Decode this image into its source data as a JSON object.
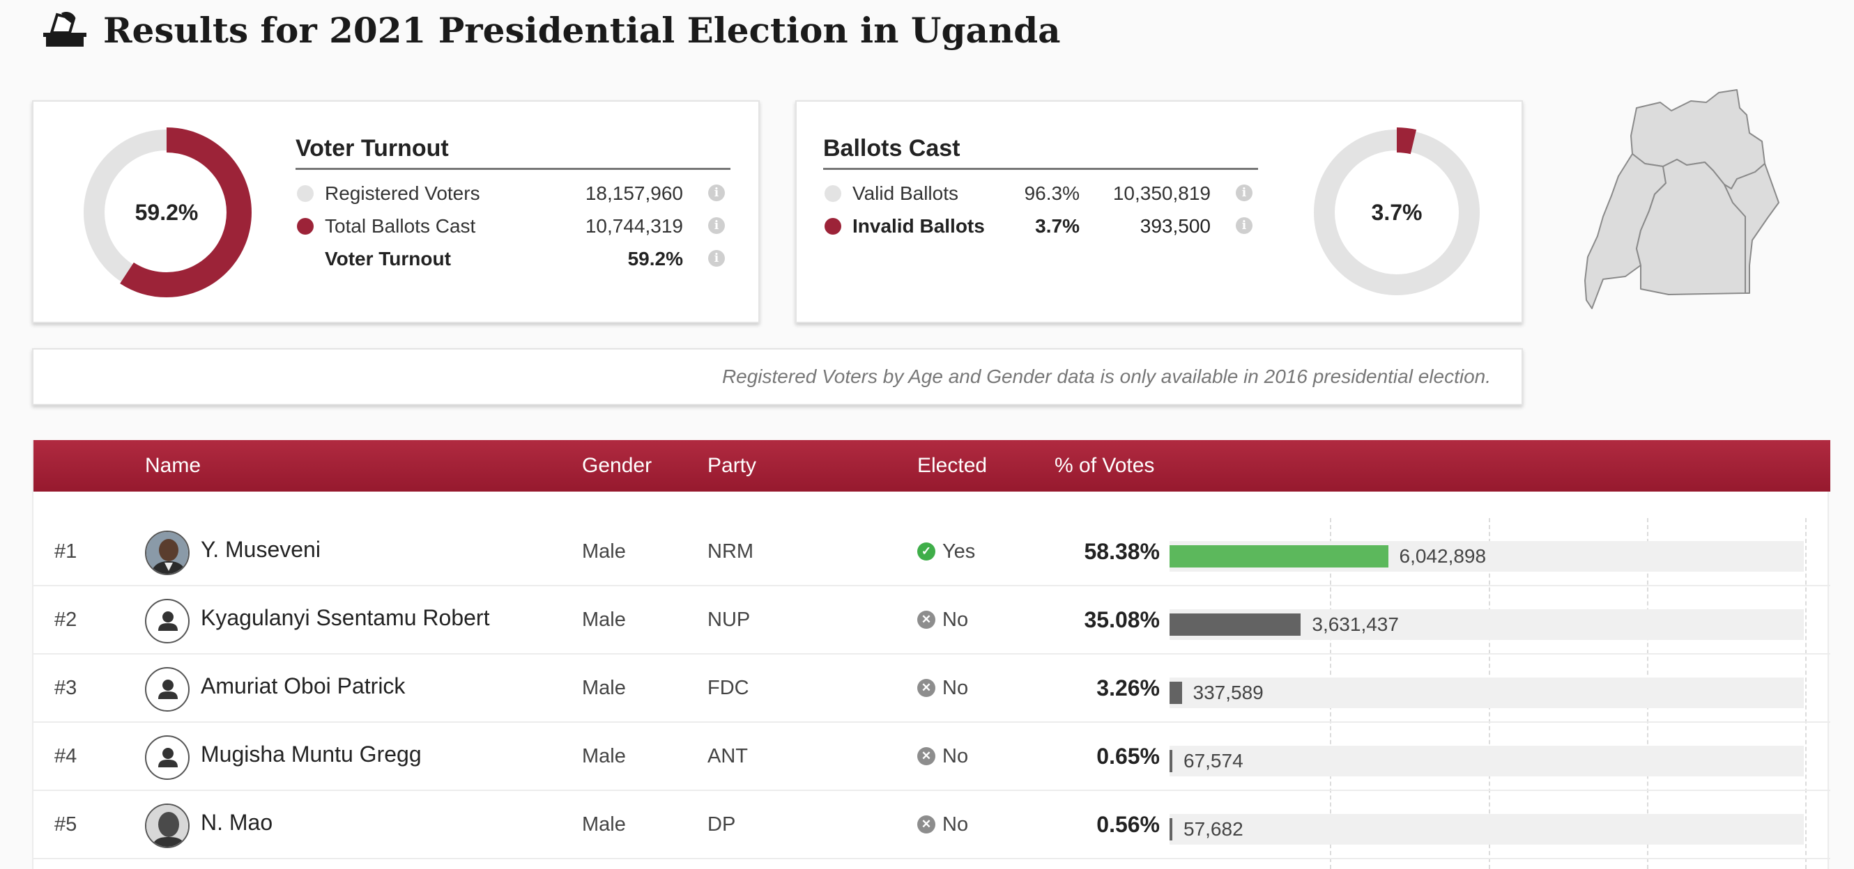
{
  "page": {
    "title": "Results for 2021 Presidential Election in Uganda",
    "title_icon": "ballot-box-icon"
  },
  "turnout": {
    "title": "Voter Turnout",
    "center_label": "59.2%",
    "fraction": 0.592,
    "rows": [
      {
        "label": "Registered Voters",
        "value": "18,157,960",
        "dot": "grey"
      },
      {
        "label": "Total Ballots Cast",
        "value": "10,744,319",
        "dot": "red"
      },
      {
        "label": "Voter Turnout",
        "value": "59.2%",
        "dot": "none"
      }
    ]
  },
  "ballots": {
    "title": "Ballots Cast",
    "center_label": "3.7%",
    "fraction": 0.037,
    "rows": [
      {
        "label": "Valid Ballots",
        "pct": "96.3%",
        "value": "10,350,819",
        "dot": "grey"
      },
      {
        "label": "Invalid Ballots",
        "pct": "3.7%",
        "value": "393,500",
        "dot": "red"
      }
    ]
  },
  "notice": "Registered Voters by Age and Gender data is only available in 2016 presidential election.",
  "table": {
    "headers": {
      "name": "Name",
      "gender": "Gender",
      "party": "Party",
      "elected": "Elected",
      "votes": "% of Votes"
    },
    "rows": [
      {
        "rank": "#1",
        "name": "Y. Museveni",
        "gender": "Male",
        "party": "NRM",
        "elected": "Yes",
        "elected_flag": true,
        "pct": "58.38%",
        "votes": "6,042,898",
        "share": 0.5838,
        "avatar": "photo"
      },
      {
        "rank": "#2",
        "name": "Kyagulanyi Ssentamu Robert",
        "gender": "Male",
        "party": "NUP",
        "elected": "No",
        "elected_flag": false,
        "pct": "35.08%",
        "votes": "3,631,437",
        "share": 0.3508,
        "avatar": "placeholder"
      },
      {
        "rank": "#3",
        "name": "Amuriat Oboi Patrick",
        "gender": "Male",
        "party": "FDC",
        "elected": "No",
        "elected_flag": false,
        "pct": "3.26%",
        "votes": "337,589",
        "share": 0.0326,
        "avatar": "placeholder"
      },
      {
        "rank": "#4",
        "name": "Mugisha Muntu Gregg",
        "gender": "Male",
        "party": "ANT",
        "elected": "No",
        "elected_flag": false,
        "pct": "0.65%",
        "votes": "67,574",
        "share": 0.0065,
        "avatar": "placeholder"
      },
      {
        "rank": "#5",
        "name": "N. Mao",
        "gender": "Male",
        "party": "DP",
        "elected": "No",
        "elected_flag": false,
        "pct": "0.56%",
        "votes": "57,682",
        "share": 0.0056,
        "avatar": "photo"
      }
    ]
  },
  "colors": {
    "accent": "#9c2338",
    "header_bg": "#a6233a",
    "winner_bar": "#5cb85c",
    "other_bar": "#636363",
    "donut_track": "#e3e3e3"
  }
}
